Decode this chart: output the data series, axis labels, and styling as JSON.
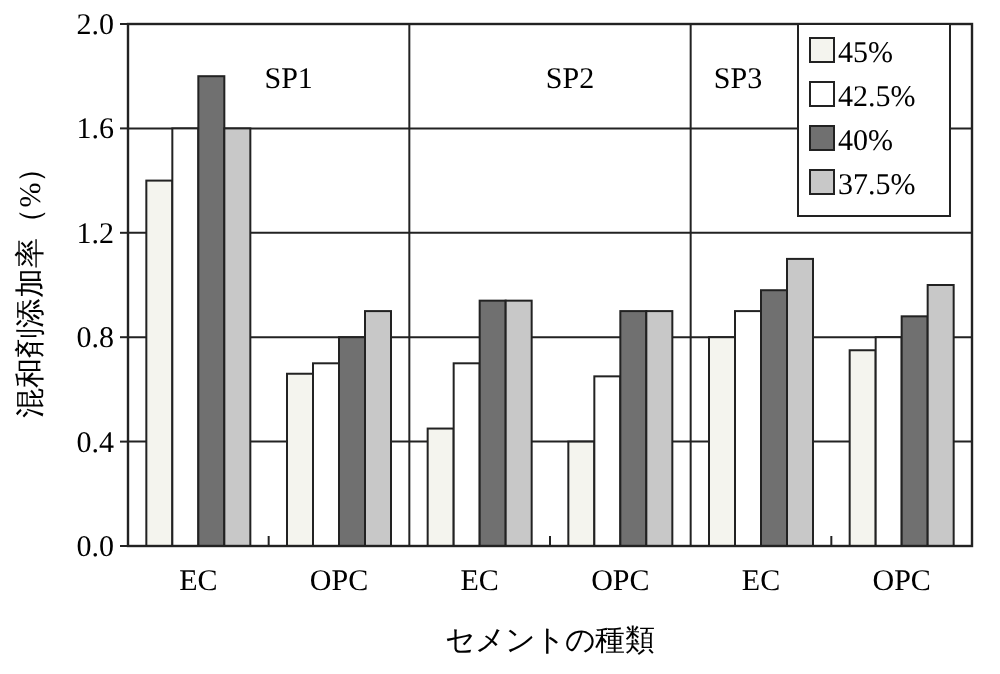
{
  "chart_data": {
    "type": "bar",
    "xlabel": "セメントの種類",
    "ylabel": "混和剤添加率（%）",
    "categories": [
      "EC",
      "OPC",
      "EC",
      "OPC",
      "EC",
      "OPC"
    ],
    "series": [
      {
        "name": "45%",
        "color": "#f4f4ee",
        "values": [
          1.4,
          0.66,
          0.45,
          0.4,
          0.8,
          0.75
        ]
      },
      {
        "name": "42.5%",
        "color": "#ffffff",
        "values": [
          1.6,
          0.7,
          0.7,
          0.65,
          0.9,
          0.8
        ]
      },
      {
        "name": "40%",
        "color": "#707070",
        "values": [
          1.8,
          0.8,
          0.94,
          0.9,
          0.98,
          0.88
        ]
      },
      {
        "name": "37.5%",
        "color": "#c8c8c8",
        "values": [
          1.6,
          0.9,
          0.94,
          0.9,
          1.1,
          1.0
        ]
      }
    ],
    "annotations": [
      "SP1",
      "SP2",
      "SP3"
    ],
    "ylim": [
      0,
      2.0
    ],
    "yticks": [
      {
        "value": 0,
        "label": "0.0"
      },
      {
        "value": 0.4,
        "label": "0.4"
      },
      {
        "value": 0.8,
        "label": "0.8"
      },
      {
        "value": 1.2,
        "label": "1.2"
      },
      {
        "value": 1.6,
        "label": "1.6"
      },
      {
        "value": 2.0,
        "label": "2.0"
      }
    ],
    "grid": "y",
    "legend": "top right"
  }
}
